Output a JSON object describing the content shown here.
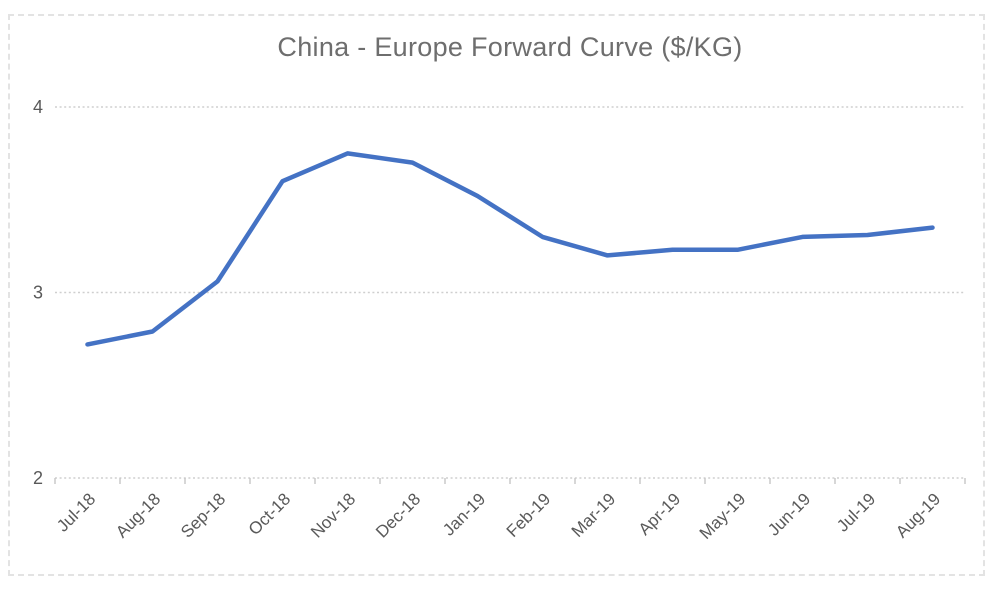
{
  "chart_data": {
    "type": "line",
    "title": "China - Europe Forward Curve ($/KG)",
    "categories": [
      "Jul-18",
      "Aug-18",
      "Sep-18",
      "Oct-18",
      "Nov-18",
      "Dec-18",
      "Jan-19",
      "Feb-19",
      "Mar-19",
      "Apr-19",
      "May-19",
      "Jun-19",
      "Jul-19",
      "Aug-19"
    ],
    "values": [
      2.72,
      2.79,
      3.06,
      3.6,
      3.75,
      3.7,
      3.52,
      3.3,
      3.2,
      3.23,
      3.23,
      3.3,
      3.31,
      3.35
    ],
    "xlabel": "",
    "ylabel": "",
    "ylim": [
      2,
      4
    ],
    "yticks": [
      2,
      3,
      4
    ],
    "ytick_labels": [
      "2",
      "3",
      "4"
    ],
    "grid": "horizontal-dotted",
    "legend": "none",
    "colors": {
      "line": "#4472C4",
      "gridline": "#cfcfcf",
      "tick": "#c6c6c6",
      "axis_text": "#595959",
      "title_text": "#6e6e6e",
      "frame_border": "#e3e3e3",
      "background": "#ffffff"
    }
  }
}
